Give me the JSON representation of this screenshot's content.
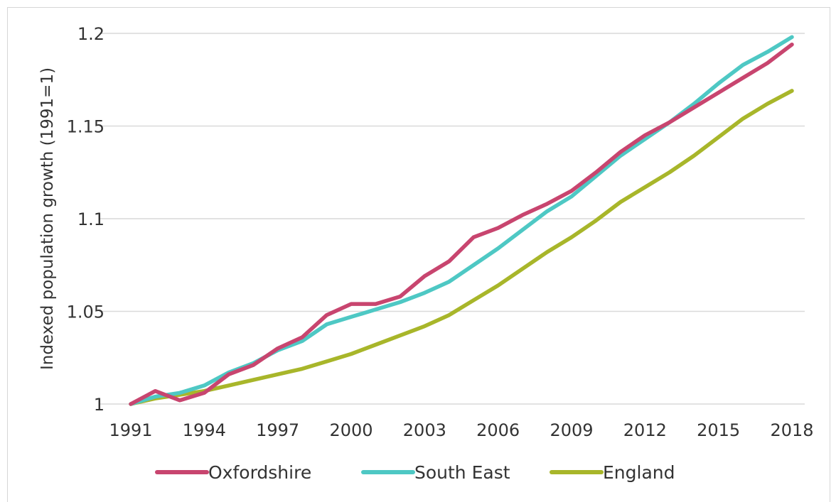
{
  "chart_data": {
    "type": "line",
    "title": "",
    "xlabel": "",
    "ylabel": "Indexed population growth (1991=1)",
    "ylim": [
      1,
      1.2
    ],
    "yticks": [
      "1",
      "1.05",
      "1.1",
      "1.15",
      "1.2"
    ],
    "ytick_values": [
      1,
      1.05,
      1.1,
      1.15,
      1.2
    ],
    "xticks": [
      "1991",
      "1994",
      "1997",
      "2000",
      "2003",
      "2006",
      "2009",
      "2012",
      "2015",
      "2018"
    ],
    "x": [
      1991,
      1992,
      1993,
      1994,
      1995,
      1996,
      1997,
      1998,
      1999,
      2000,
      2001,
      2002,
      2003,
      2004,
      2005,
      2006,
      2007,
      2008,
      2009,
      2010,
      2011,
      2012,
      2013,
      2014,
      2015,
      2016,
      2017,
      2018
    ],
    "grid": "horizontal",
    "legend_position": "bottom",
    "series": [
      {
        "name": "Oxfordshire",
        "color": "#c8456f",
        "values": [
          1.0,
          1.007,
          1.002,
          1.006,
          1.016,
          1.021,
          1.03,
          1.036,
          1.048,
          1.054,
          1.054,
          1.058,
          1.069,
          1.077,
          1.09,
          1.095,
          1.102,
          1.108,
          1.115,
          1.125,
          1.136,
          1.145,
          1.152,
          1.16,
          1.168,
          1.176,
          1.184,
          1.194
        ]
      },
      {
        "name": "South East",
        "color": "#4ec8c4",
        "values": [
          1.0,
          1.004,
          1.006,
          1.01,
          1.017,
          1.022,
          1.029,
          1.034,
          1.043,
          1.047,
          1.051,
          1.055,
          1.06,
          1.066,
          1.075,
          1.084,
          1.094,
          1.104,
          1.112,
          1.123,
          1.134,
          1.143,
          1.152,
          1.162,
          1.173,
          1.183,
          1.19,
          1.198
        ]
      },
      {
        "name": "England",
        "color": "#a8b62a",
        "values": [
          1.0,
          1.003,
          1.005,
          1.007,
          1.01,
          1.013,
          1.016,
          1.019,
          1.023,
          1.027,
          1.032,
          1.037,
          1.042,
          1.048,
          1.056,
          1.064,
          1.073,
          1.082,
          1.09,
          1.099,
          1.109,
          1.117,
          1.125,
          1.134,
          1.144,
          1.154,
          1.162,
          1.169
        ]
      }
    ]
  }
}
